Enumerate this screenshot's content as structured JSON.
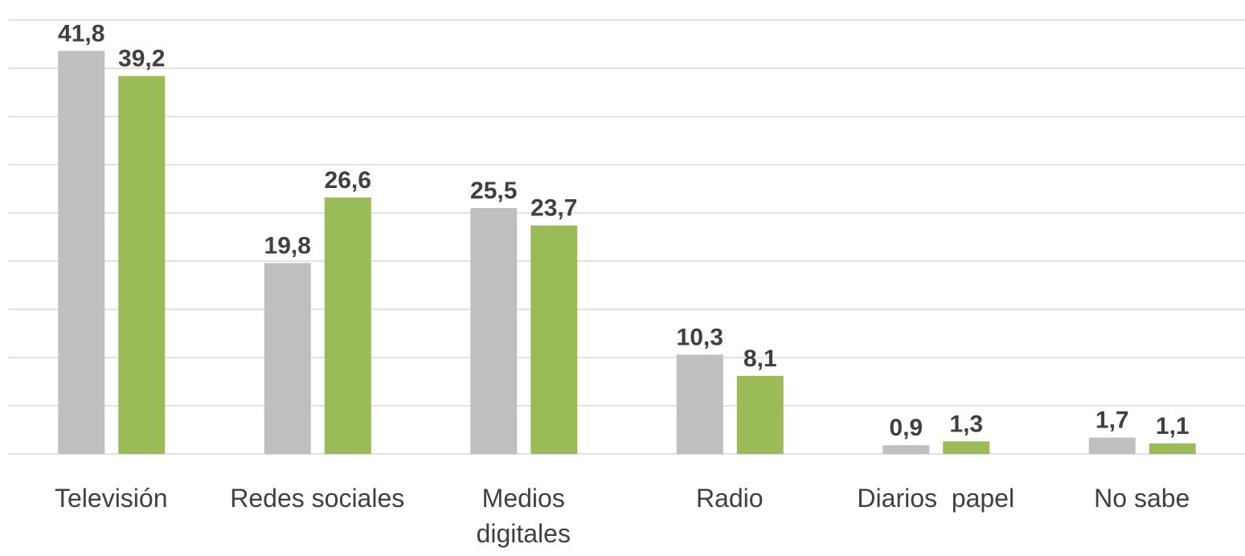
{
  "chart_data": {
    "type": "bar",
    "categories": [
      "Televisión",
      "Redes sociales",
      "Medios\ndigitales",
      "Radio",
      "Diarios  papel",
      "No sabe"
    ],
    "series": [
      {
        "color": "#bfbfbf",
        "values": [
          41.8,
          19.8,
          25.5,
          10.3,
          0.9,
          1.7
        ],
        "value_labels": [
          "41,8",
          "19,8",
          "25,5",
          "10,3",
          "0,9",
          "1,7"
        ]
      },
      {
        "color": "#9bbb59",
        "values": [
          39.2,
          26.6,
          23.7,
          8.1,
          1.3,
          1.1
        ],
        "value_labels": [
          "39,2",
          "26,6",
          "23,7",
          "8,1",
          "1,3",
          "1,1"
        ]
      }
    ],
    "ylim": [
      0,
      45
    ],
    "yticks": [
      0,
      5,
      10,
      15,
      20,
      25,
      30,
      35,
      40,
      45
    ],
    "grid": true
  }
}
